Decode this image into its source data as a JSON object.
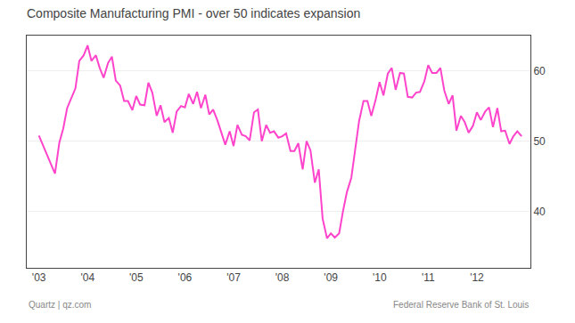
{
  "chart_data": {
    "type": "line",
    "title": "Composite Manufacturing PMI - over 50 indicates expansion",
    "annotations": [
      "Quartz | qz.com",
      "Federal Reserve Bank of St. Louis"
    ],
    "color": "#FF44CC",
    "grid": true,
    "xlim": [
      2002.75,
      2013.1
    ],
    "xticks": [
      {
        "value": 2003,
        "label": "'03"
      },
      {
        "value": 2004,
        "label": "'04"
      },
      {
        "value": 2005,
        "label": "'05"
      },
      {
        "value": 2006,
        "label": "'06"
      },
      {
        "value": 2007,
        "label": "'07"
      },
      {
        "value": 2008,
        "label": "'08"
      },
      {
        "value": 2009,
        "label": "'09"
      },
      {
        "value": 2010,
        "label": "'10"
      },
      {
        "value": 2011,
        "label": "'11"
      },
      {
        "value": 2012,
        "label": "'12"
      }
    ],
    "ylim": [
      32,
      65
    ],
    "yticks": [
      40,
      50,
      60
    ],
    "x": [
      2003.0,
      2003.08,
      2003.17,
      2003.25,
      2003.33,
      2003.42,
      2003.5,
      2003.58,
      2003.67,
      2003.75,
      2003.83,
      2003.92,
      2004.0,
      2004.08,
      2004.17,
      2004.25,
      2004.33,
      2004.42,
      2004.5,
      2004.58,
      2004.67,
      2004.75,
      2004.83,
      2004.92,
      2005.0,
      2005.08,
      2005.17,
      2005.25,
      2005.33,
      2005.42,
      2005.5,
      2005.58,
      2005.67,
      2005.75,
      2005.83,
      2005.92,
      2006.0,
      2006.08,
      2006.17,
      2006.25,
      2006.33,
      2006.42,
      2006.5,
      2006.58,
      2006.67,
      2006.75,
      2006.83,
      2006.92,
      2007.0,
      2007.08,
      2007.17,
      2007.25,
      2007.33,
      2007.42,
      2007.5,
      2007.58,
      2007.67,
      2007.75,
      2007.83,
      2007.92,
      2008.0,
      2008.08,
      2008.17,
      2008.25,
      2008.33,
      2008.42,
      2008.5,
      2008.58,
      2008.67,
      2008.75,
      2008.83,
      2008.92,
      2009.0,
      2009.08,
      2009.17,
      2009.25,
      2009.33,
      2009.42,
      2009.5,
      2009.58,
      2009.67,
      2009.75,
      2009.83,
      2009.92,
      2010.0,
      2010.08,
      2010.17,
      2010.25,
      2010.33,
      2010.42,
      2010.5,
      2010.58,
      2010.67,
      2010.75,
      2010.83,
      2010.92,
      2011.0,
      2011.08,
      2011.17,
      2011.25,
      2011.33,
      2011.42,
      2011.5,
      2011.58,
      2011.67,
      2011.75,
      2011.83,
      2011.92,
      2012.0,
      2012.08,
      2012.17,
      2012.25,
      2012.33,
      2012.42,
      2012.5,
      2012.58,
      2012.67,
      2012.75,
      2012.83,
      2012.92
    ],
    "values": [
      50.8,
      49.5,
      47.9,
      46.5,
      45.4,
      49.8,
      51.8,
      54.7,
      56.3,
      57.5,
      61.4,
      62.2,
      63.6,
      61.4,
      62.2,
      60.4,
      59.0,
      61.1,
      62.0,
      58.6,
      57.9,
      55.7,
      55.7,
      54.4,
      56.4,
      55.2,
      55.1,
      58.3,
      56.9,
      53.6,
      55.1,
      52.7,
      53.3,
      51.2,
      54.2,
      55.0,
      54.8,
      56.7,
      55.3,
      57.0,
      54.7,
      56.6,
      53.8,
      54.5,
      52.9,
      51.2,
      49.5,
      51.4,
      49.3,
      52.3,
      50.9,
      50.7,
      50.1,
      54.1,
      54.5,
      50.0,
      52.3,
      51.2,
      51.4,
      50.5,
      50.7,
      51.1,
      48.6,
      48.6,
      49.7,
      46.0,
      50.0,
      48.7,
      44.1,
      46.0,
      39.0,
      36.2,
      36.9,
      36.3,
      36.9,
      40.1,
      42.8,
      44.8,
      48.9,
      52.9,
      55.7,
      55.7,
      53.6,
      55.9,
      58.4,
      56.5,
      59.6,
      60.4,
      57.3,
      59.7,
      59.6,
      56.3,
      56.2,
      56.9,
      57.0,
      58.5,
      60.8,
      59.7,
      59.7,
      60.4,
      57.2,
      55.3,
      56.5,
      51.5,
      53.6,
      52.7,
      51.2,
      52.2,
      54.1,
      53.0,
      54.2,
      54.8,
      52.0,
      54.7,
      51.4,
      51.5,
      49.6,
      50.7,
      51.4,
      50.7
    ]
  }
}
